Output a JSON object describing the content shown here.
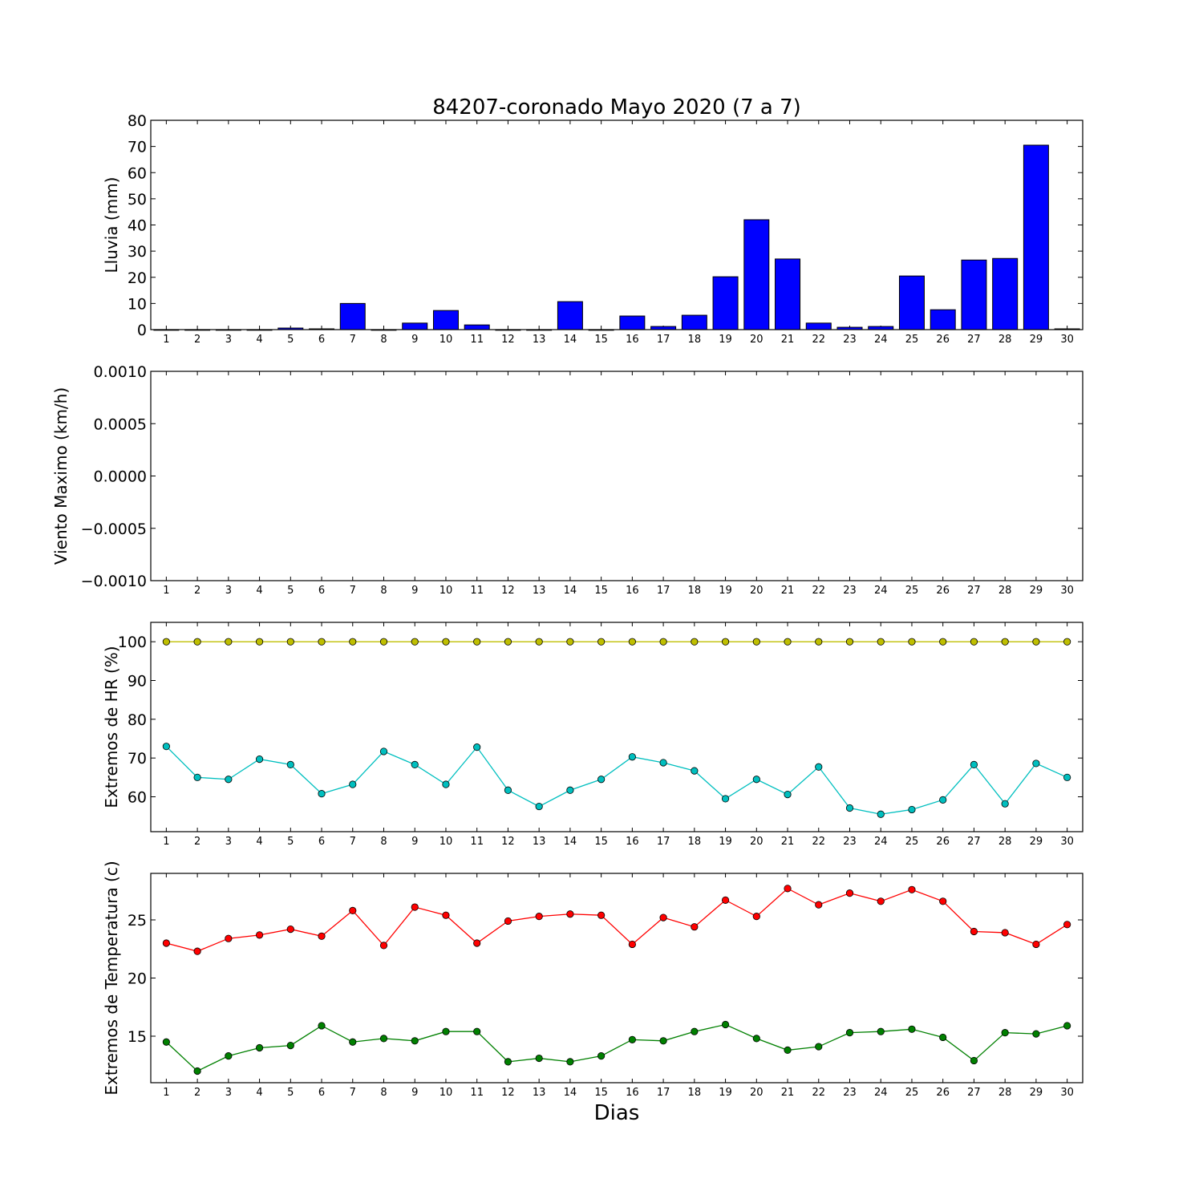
{
  "title": "84207-coronado Mayo 2020  (7 a 7)",
  "xlabel": "Dias",
  "chart_data": [
    {
      "type": "bar",
      "ylabel": "Lluvia (mm)",
      "x": [
        1,
        2,
        3,
        4,
        5,
        6,
        7,
        8,
        9,
        10,
        11,
        12,
        13,
        14,
        15,
        16,
        17,
        18,
        19,
        20,
        21,
        22,
        23,
        24,
        25,
        26,
        27,
        28,
        29,
        30
      ],
      "ylim": [
        0,
        80
      ],
      "yticks": [
        0,
        10,
        20,
        30,
        40,
        50,
        60,
        70,
        80
      ],
      "series": [
        {
          "color": "#0000ff",
          "values": [
            0,
            0,
            0,
            0,
            0.6,
            0.3,
            10,
            0,
            2.5,
            7.3,
            1.8,
            0,
            0,
            10.7,
            0,
            5.2,
            1.2,
            5.5,
            20.2,
            42,
            27,
            2.5,
            0.9,
            1.2,
            20.5,
            7.6,
            26.6,
            27.2,
            70.5,
            0.3
          ]
        }
      ]
    },
    {
      "type": "line",
      "ylabel": "Viento Maximo (km/h)",
      "x": [
        1,
        2,
        3,
        4,
        5,
        6,
        7,
        8,
        9,
        10,
        11,
        12,
        13,
        14,
        15,
        16,
        17,
        18,
        19,
        20,
        21,
        22,
        23,
        24,
        25,
        26,
        27,
        28,
        29,
        30
      ],
      "ylim": [
        -0.001,
        0.001
      ],
      "yticks": [
        -0.001,
        -0.0005,
        0,
        0.0005,
        0.001
      ],
      "ytick_labels": [
        "−0.0010",
        "−0.0005",
        "0.0000",
        "0.0005",
        "0.0010"
      ],
      "series": []
    },
    {
      "type": "line",
      "ylabel": "Extremos de HR (%)",
      "x": [
        1,
        2,
        3,
        4,
        5,
        6,
        7,
        8,
        9,
        10,
        11,
        12,
        13,
        14,
        15,
        16,
        17,
        18,
        19,
        20,
        21,
        22,
        23,
        24,
        25,
        26,
        27,
        28,
        29,
        30
      ],
      "ylim": [
        51,
        105
      ],
      "yticks": [
        60,
        70,
        80,
        90,
        100
      ],
      "series": [
        {
          "color": "#bfbf00",
          "values": [
            100,
            100,
            100,
            100,
            100,
            100,
            100,
            100,
            100,
            100,
            100,
            100,
            100,
            100,
            100,
            100,
            100,
            100,
            100,
            100,
            100,
            100,
            100,
            100,
            100,
            100,
            100,
            100,
            100,
            100
          ]
        },
        {
          "color": "#00bfbf",
          "values": [
            73,
            65,
            64.5,
            69.7,
            68.3,
            60.8,
            63.2,
            71.7,
            68.3,
            63.2,
            72.8,
            61.7,
            57.5,
            61.7,
            64.5,
            70.3,
            68.8,
            66.7,
            59.5,
            64.5,
            60.6,
            67.7,
            57.1,
            55.5,
            56.7,
            59.2,
            68.3,
            58.2,
            68.6,
            65
          ]
        }
      ]
    },
    {
      "type": "line",
      "ylabel": "Extremos de Temperatura (c)",
      "x": [
        1,
        2,
        3,
        4,
        5,
        6,
        7,
        8,
        9,
        10,
        11,
        12,
        13,
        14,
        15,
        16,
        17,
        18,
        19,
        20,
        21,
        22,
        23,
        24,
        25,
        26,
        27,
        28,
        29,
        30
      ],
      "ylim": [
        11,
        29
      ],
      "yticks": [
        15,
        20,
        25
      ],
      "series": [
        {
          "color": "#ff0000",
          "values": [
            23,
            22.3,
            23.4,
            23.7,
            24.2,
            23.6,
            25.8,
            22.8,
            26.1,
            25.4,
            23,
            24.9,
            25.3,
            25.5,
            25.4,
            22.9,
            25.2,
            24.4,
            26.7,
            25.3,
            27.7,
            26.3,
            27.3,
            26.6,
            27.6,
            26.6,
            24,
            23.9,
            22.9,
            24.6
          ]
        },
        {
          "color": "#008000",
          "values": [
            14.5,
            12,
            13.3,
            14,
            14.2,
            15.9,
            14.5,
            14.8,
            14.6,
            15.4,
            15.4,
            12.8,
            13.1,
            12.8,
            13.3,
            14.7,
            14.6,
            15.4,
            16,
            14.8,
            13.8,
            14.1,
            15.3,
            15.4,
            15.6,
            14.9,
            12.9,
            15.3,
            15.2,
            15.9
          ]
        }
      ]
    }
  ]
}
